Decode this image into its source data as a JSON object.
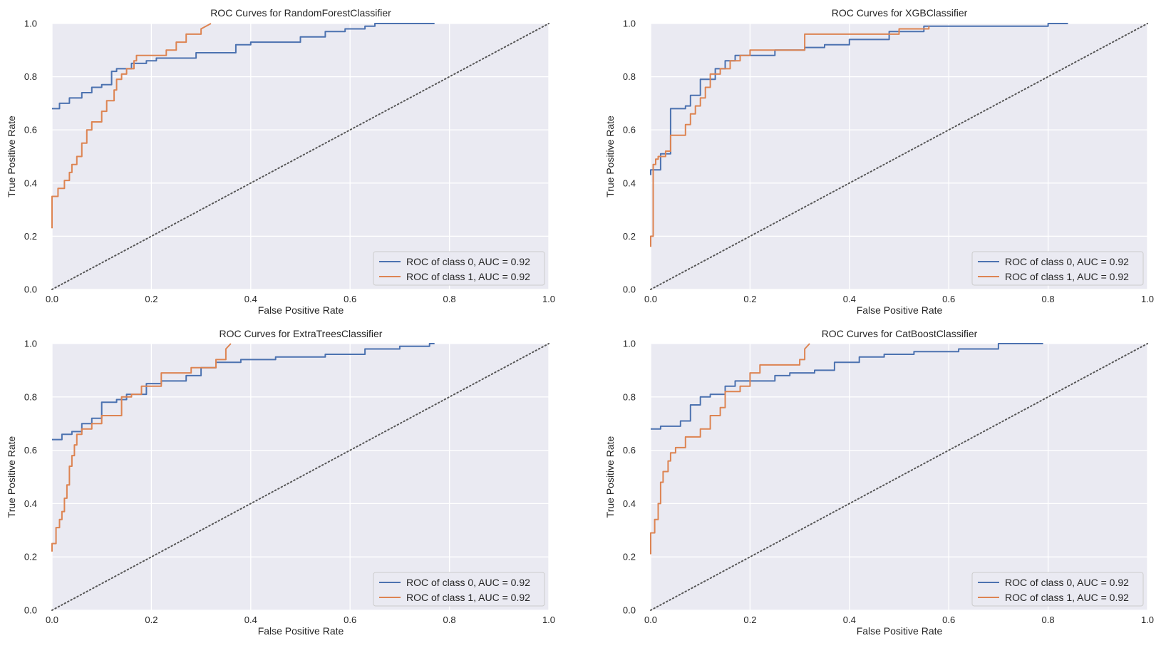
{
  "figure": {
    "background": "#ffffff",
    "plot_background": "#eaeaf2",
    "grid_color": "#ffffff",
    "legend_background": "#eaeaf2",
    "legend_border": "#cccccc",
    "diagonal_color": "#555555",
    "series_colors": {
      "class_0": "#4c72b0",
      "class_1": "#dd8452"
    }
  },
  "chart_data": [
    {
      "type": "line",
      "title": "ROC Curves for RandomForestClassifier",
      "xlabel": "False Positive Rate",
      "ylabel": "True Positive Rate",
      "xlim": [
        0,
        1
      ],
      "ylim": [
        0,
        1
      ],
      "xticks": [
        "0.0",
        "0.2",
        "0.4",
        "0.6",
        "0.8",
        "1.0"
      ],
      "yticks": [
        "0.0",
        "0.2",
        "0.4",
        "0.6",
        "0.8",
        "1.0"
      ],
      "grid": true,
      "legend_position": "lower right",
      "diagonal": {
        "style": "dotted",
        "x": [
          0,
          1
        ],
        "y": [
          0,
          1
        ]
      },
      "series": [
        {
          "name": "ROC of class 0, AUC = 0.92",
          "color": "#4c72b0",
          "x": [
            0.0,
            0.0,
            0.015,
            0.015,
            0.035,
            0.035,
            0.06,
            0.06,
            0.08,
            0.08,
            0.1,
            0.1,
            0.12,
            0.12,
            0.13,
            0.13,
            0.16,
            0.16,
            0.19,
            0.19,
            0.21,
            0.21,
            0.29,
            0.29,
            0.37,
            0.37,
            0.4,
            0.4,
            0.5,
            0.5,
            0.55,
            0.55,
            0.59,
            0.59,
            0.63,
            0.63,
            0.65,
            0.65,
            0.77
          ],
          "y": [
            0.68,
            0.68,
            0.68,
            0.7,
            0.7,
            0.72,
            0.72,
            0.74,
            0.74,
            0.76,
            0.76,
            0.77,
            0.77,
            0.82,
            0.82,
            0.83,
            0.83,
            0.85,
            0.85,
            0.86,
            0.86,
            0.87,
            0.87,
            0.89,
            0.89,
            0.92,
            0.92,
            0.93,
            0.93,
            0.95,
            0.95,
            0.97,
            0.97,
            0.98,
            0.98,
            0.99,
            0.99,
            1.0,
            1.0
          ]
        },
        {
          "name": "ROC of class 1, AUC = 0.92",
          "color": "#dd8452",
          "x": [
            0.0,
            0.0,
            0.012,
            0.012,
            0.025,
            0.025,
            0.035,
            0.035,
            0.04,
            0.04,
            0.05,
            0.05,
            0.06,
            0.06,
            0.07,
            0.07,
            0.08,
            0.08,
            0.1,
            0.1,
            0.11,
            0.11,
            0.125,
            0.125,
            0.13,
            0.13,
            0.14,
            0.14,
            0.15,
            0.15,
            0.165,
            0.165,
            0.17,
            0.17,
            0.23,
            0.23,
            0.25,
            0.25,
            0.27,
            0.27,
            0.3,
            0.3,
            0.32
          ],
          "y": [
            0.23,
            0.35,
            0.35,
            0.38,
            0.38,
            0.41,
            0.41,
            0.44,
            0.44,
            0.47,
            0.47,
            0.5,
            0.5,
            0.55,
            0.55,
            0.6,
            0.6,
            0.63,
            0.63,
            0.67,
            0.67,
            0.71,
            0.71,
            0.75,
            0.75,
            0.79,
            0.79,
            0.81,
            0.81,
            0.83,
            0.83,
            0.86,
            0.86,
            0.88,
            0.88,
            0.9,
            0.9,
            0.93,
            0.93,
            0.96,
            0.96,
            0.98,
            1.0
          ]
        }
      ]
    },
    {
      "type": "line",
      "title": "ROC Curves for XGBClassifier",
      "xlabel": "False Positive Rate",
      "ylabel": "True Positive Rate",
      "xlim": [
        0,
        1
      ],
      "ylim": [
        0,
        1
      ],
      "xticks": [
        "0.0",
        "0.2",
        "0.4",
        "0.6",
        "0.8",
        "1.0"
      ],
      "yticks": [
        "0.0",
        "0.2",
        "0.4",
        "0.6",
        "0.8",
        "1.0"
      ],
      "grid": true,
      "legend_position": "lower right",
      "diagonal": {
        "style": "dotted",
        "x": [
          0,
          1
        ],
        "y": [
          0,
          1
        ]
      },
      "series": [
        {
          "name": "ROC of class 0, AUC = 0.92",
          "color": "#4c72b0",
          "x": [
            0.0,
            0.0,
            0.02,
            0.02,
            0.04,
            0.04,
            0.07,
            0.07,
            0.08,
            0.08,
            0.1,
            0.1,
            0.13,
            0.13,
            0.15,
            0.15,
            0.17,
            0.17,
            0.25,
            0.25,
            0.31,
            0.31,
            0.35,
            0.35,
            0.4,
            0.4,
            0.48,
            0.48,
            0.55,
            0.55,
            0.8,
            0.8,
            0.84
          ],
          "y": [
            0.43,
            0.45,
            0.45,
            0.51,
            0.51,
            0.68,
            0.68,
            0.69,
            0.69,
            0.73,
            0.73,
            0.79,
            0.79,
            0.83,
            0.83,
            0.86,
            0.86,
            0.88,
            0.88,
            0.9,
            0.9,
            0.91,
            0.91,
            0.92,
            0.92,
            0.94,
            0.94,
            0.97,
            0.97,
            0.99,
            0.99,
            1.0,
            1.0
          ]
        },
        {
          "name": "ROC of class 1, AUC = 0.92",
          "color": "#dd8452",
          "x": [
            0.0,
            0.0,
            0.005,
            0.005,
            0.01,
            0.01,
            0.015,
            0.015,
            0.03,
            0.03,
            0.04,
            0.04,
            0.07,
            0.07,
            0.08,
            0.08,
            0.09,
            0.09,
            0.1,
            0.1,
            0.11,
            0.11,
            0.12,
            0.12,
            0.14,
            0.14,
            0.16,
            0.16,
            0.18,
            0.18,
            0.2,
            0.2,
            0.31,
            0.31,
            0.38,
            0.38,
            0.5,
            0.5,
            0.56,
            0.56
          ],
          "y": [
            0.16,
            0.2,
            0.2,
            0.47,
            0.47,
            0.49,
            0.49,
            0.5,
            0.5,
            0.52,
            0.52,
            0.58,
            0.58,
            0.62,
            0.62,
            0.66,
            0.66,
            0.69,
            0.69,
            0.72,
            0.72,
            0.76,
            0.76,
            0.81,
            0.81,
            0.83,
            0.83,
            0.86,
            0.86,
            0.88,
            0.88,
            0.9,
            0.9,
            0.96,
            0.96,
            0.96,
            0.96,
            0.98,
            0.98,
            0.99
          ]
        }
      ]
    },
    {
      "type": "line",
      "title": "ROC Curves for ExtraTreesClassifier",
      "xlabel": "False Positive Rate",
      "ylabel": "True Positive Rate",
      "xlim": [
        0,
        1
      ],
      "ylim": [
        0,
        1
      ],
      "xticks": [
        "0.0",
        "0.2",
        "0.4",
        "0.6",
        "0.8",
        "1.0"
      ],
      "yticks": [
        "0.0",
        "0.2",
        "0.4",
        "0.6",
        "0.8",
        "1.0"
      ],
      "grid": true,
      "legend_position": "lower right",
      "diagonal": {
        "style": "dotted",
        "x": [
          0,
          1
        ],
        "y": [
          0,
          1
        ]
      },
      "series": [
        {
          "name": "ROC of class 0, AUC = 0.92",
          "color": "#4c72b0",
          "x": [
            0.0,
            0.0,
            0.02,
            0.02,
            0.04,
            0.04,
            0.06,
            0.06,
            0.08,
            0.08,
            0.1,
            0.1,
            0.13,
            0.13,
            0.15,
            0.15,
            0.19,
            0.19,
            0.22,
            0.22,
            0.27,
            0.27,
            0.3,
            0.3,
            0.33,
            0.33,
            0.38,
            0.38,
            0.45,
            0.45,
            0.55,
            0.55,
            0.63,
            0.63,
            0.7,
            0.7,
            0.76,
            0.76,
            0.77
          ],
          "y": [
            0.64,
            0.64,
            0.64,
            0.66,
            0.66,
            0.67,
            0.67,
            0.7,
            0.7,
            0.72,
            0.72,
            0.78,
            0.78,
            0.79,
            0.79,
            0.81,
            0.81,
            0.85,
            0.85,
            0.86,
            0.86,
            0.88,
            0.88,
            0.91,
            0.91,
            0.93,
            0.93,
            0.94,
            0.94,
            0.95,
            0.95,
            0.96,
            0.96,
            0.98,
            0.98,
            0.99,
            0.99,
            1.0,
            1.0
          ]
        },
        {
          "name": "ROC of class 1, AUC = 0.92",
          "color": "#dd8452",
          "x": [
            0.0,
            0.0,
            0.008,
            0.008,
            0.015,
            0.015,
            0.02,
            0.02,
            0.025,
            0.025,
            0.03,
            0.03,
            0.035,
            0.035,
            0.04,
            0.04,
            0.045,
            0.045,
            0.05,
            0.05,
            0.06,
            0.06,
            0.08,
            0.08,
            0.1,
            0.1,
            0.14,
            0.14,
            0.16,
            0.16,
            0.18,
            0.18,
            0.22,
            0.22,
            0.28,
            0.28,
            0.33,
            0.33,
            0.35,
            0.35,
            0.36
          ],
          "y": [
            0.22,
            0.25,
            0.25,
            0.31,
            0.31,
            0.34,
            0.34,
            0.37,
            0.37,
            0.42,
            0.42,
            0.47,
            0.47,
            0.54,
            0.54,
            0.58,
            0.58,
            0.62,
            0.62,
            0.66,
            0.66,
            0.68,
            0.68,
            0.7,
            0.7,
            0.73,
            0.73,
            0.8,
            0.8,
            0.81,
            0.81,
            0.84,
            0.84,
            0.89,
            0.89,
            0.91,
            0.91,
            0.94,
            0.94,
            0.98,
            1.0
          ]
        }
      ]
    },
    {
      "type": "line",
      "title": "ROC Curves for CatBoostClassifier",
      "xlabel": "False Positive Rate",
      "ylabel": "True Positive Rate",
      "xlim": [
        0,
        1
      ],
      "ylim": [
        0,
        1
      ],
      "xticks": [
        "0.0",
        "0.2",
        "0.4",
        "0.6",
        "0.8",
        "1.0"
      ],
      "yticks": [
        "0.0",
        "0.2",
        "0.4",
        "0.6",
        "0.8",
        "1.0"
      ],
      "grid": true,
      "legend_position": "lower right",
      "diagonal": {
        "style": "dotted",
        "x": [
          0,
          1
        ],
        "y": [
          0,
          1
        ]
      },
      "series": [
        {
          "name": "ROC of class 0, AUC = 0.92",
          "color": "#4c72b0",
          "x": [
            0.0,
            0.0,
            0.02,
            0.02,
            0.06,
            0.06,
            0.08,
            0.08,
            0.1,
            0.1,
            0.12,
            0.12,
            0.15,
            0.15,
            0.17,
            0.17,
            0.25,
            0.25,
            0.28,
            0.28,
            0.33,
            0.33,
            0.37,
            0.37,
            0.42,
            0.42,
            0.47,
            0.47,
            0.53,
            0.53,
            0.62,
            0.62,
            0.7,
            0.7,
            0.79
          ],
          "y": [
            0.68,
            0.68,
            0.68,
            0.69,
            0.69,
            0.71,
            0.71,
            0.77,
            0.77,
            0.8,
            0.8,
            0.81,
            0.81,
            0.84,
            0.84,
            0.86,
            0.86,
            0.88,
            0.88,
            0.89,
            0.89,
            0.9,
            0.9,
            0.93,
            0.93,
            0.95,
            0.95,
            0.96,
            0.96,
            0.97,
            0.97,
            0.98,
            0.98,
            1.0,
            1.0
          ]
        },
        {
          "name": "ROC of class 1, AUC = 0.92",
          "color": "#dd8452",
          "x": [
            0.0,
            0.0,
            0.008,
            0.008,
            0.015,
            0.015,
            0.02,
            0.02,
            0.025,
            0.025,
            0.035,
            0.035,
            0.04,
            0.04,
            0.05,
            0.05,
            0.07,
            0.07,
            0.1,
            0.1,
            0.12,
            0.12,
            0.14,
            0.14,
            0.15,
            0.15,
            0.18,
            0.18,
            0.2,
            0.2,
            0.22,
            0.22,
            0.3,
            0.3,
            0.31,
            0.31,
            0.32
          ],
          "y": [
            0.21,
            0.29,
            0.29,
            0.34,
            0.34,
            0.4,
            0.4,
            0.48,
            0.48,
            0.52,
            0.52,
            0.56,
            0.56,
            0.59,
            0.59,
            0.61,
            0.61,
            0.65,
            0.65,
            0.68,
            0.68,
            0.73,
            0.73,
            0.76,
            0.76,
            0.82,
            0.82,
            0.84,
            0.84,
            0.89,
            0.89,
            0.92,
            0.92,
            0.94,
            0.94,
            0.98,
            1.0
          ]
        }
      ]
    }
  ]
}
